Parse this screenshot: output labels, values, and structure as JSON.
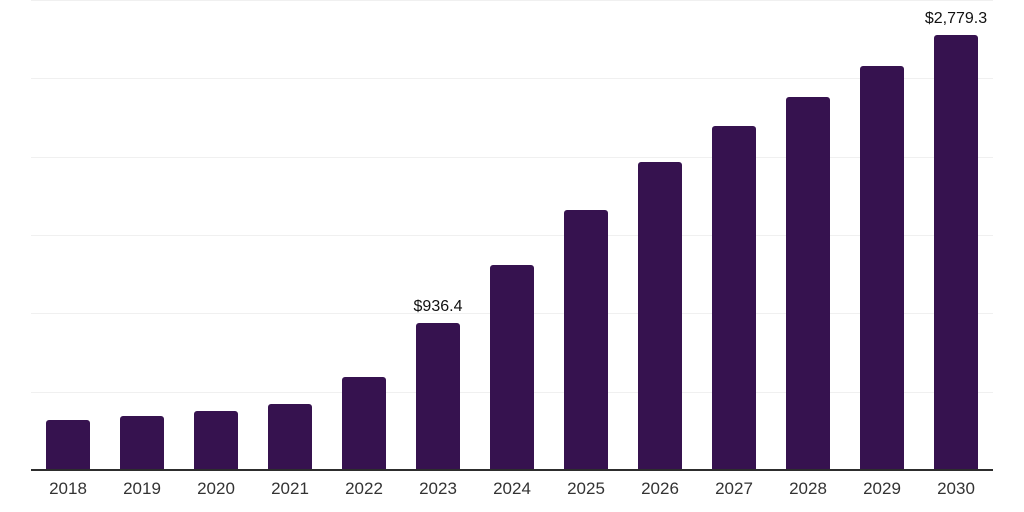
{
  "chart_data": {
    "type": "bar",
    "title": "",
    "xlabel": "",
    "ylabel": "",
    "categories": [
      "2018",
      "2019",
      "2020",
      "2021",
      "2022",
      "2023",
      "2024",
      "2025",
      "2026",
      "2027",
      "2028",
      "2029",
      "2030"
    ],
    "values": [
      318,
      343,
      375,
      420,
      592,
      936.4,
      1306,
      1657,
      1969,
      2199,
      2382,
      2580,
      2779.3
    ],
    "value_labels": [
      "",
      "",
      "",
      "",
      "",
      "$936.4",
      "",
      "",
      "",
      "",
      "",
      "",
      "$2,779.3"
    ],
    "ylim": [
      0,
      3000
    ],
    "gridline_interval": 500,
    "grid": "horizontal",
    "legend": "none",
    "y_axis_tick_labels_visible": false,
    "colors": {
      "bar": "#36124F",
      "gridline": "#f0f0f0",
      "axis_line": "#2d2d2d",
      "tick_label": "#333333",
      "value_label": "#111111",
      "background": "#ffffff"
    }
  }
}
